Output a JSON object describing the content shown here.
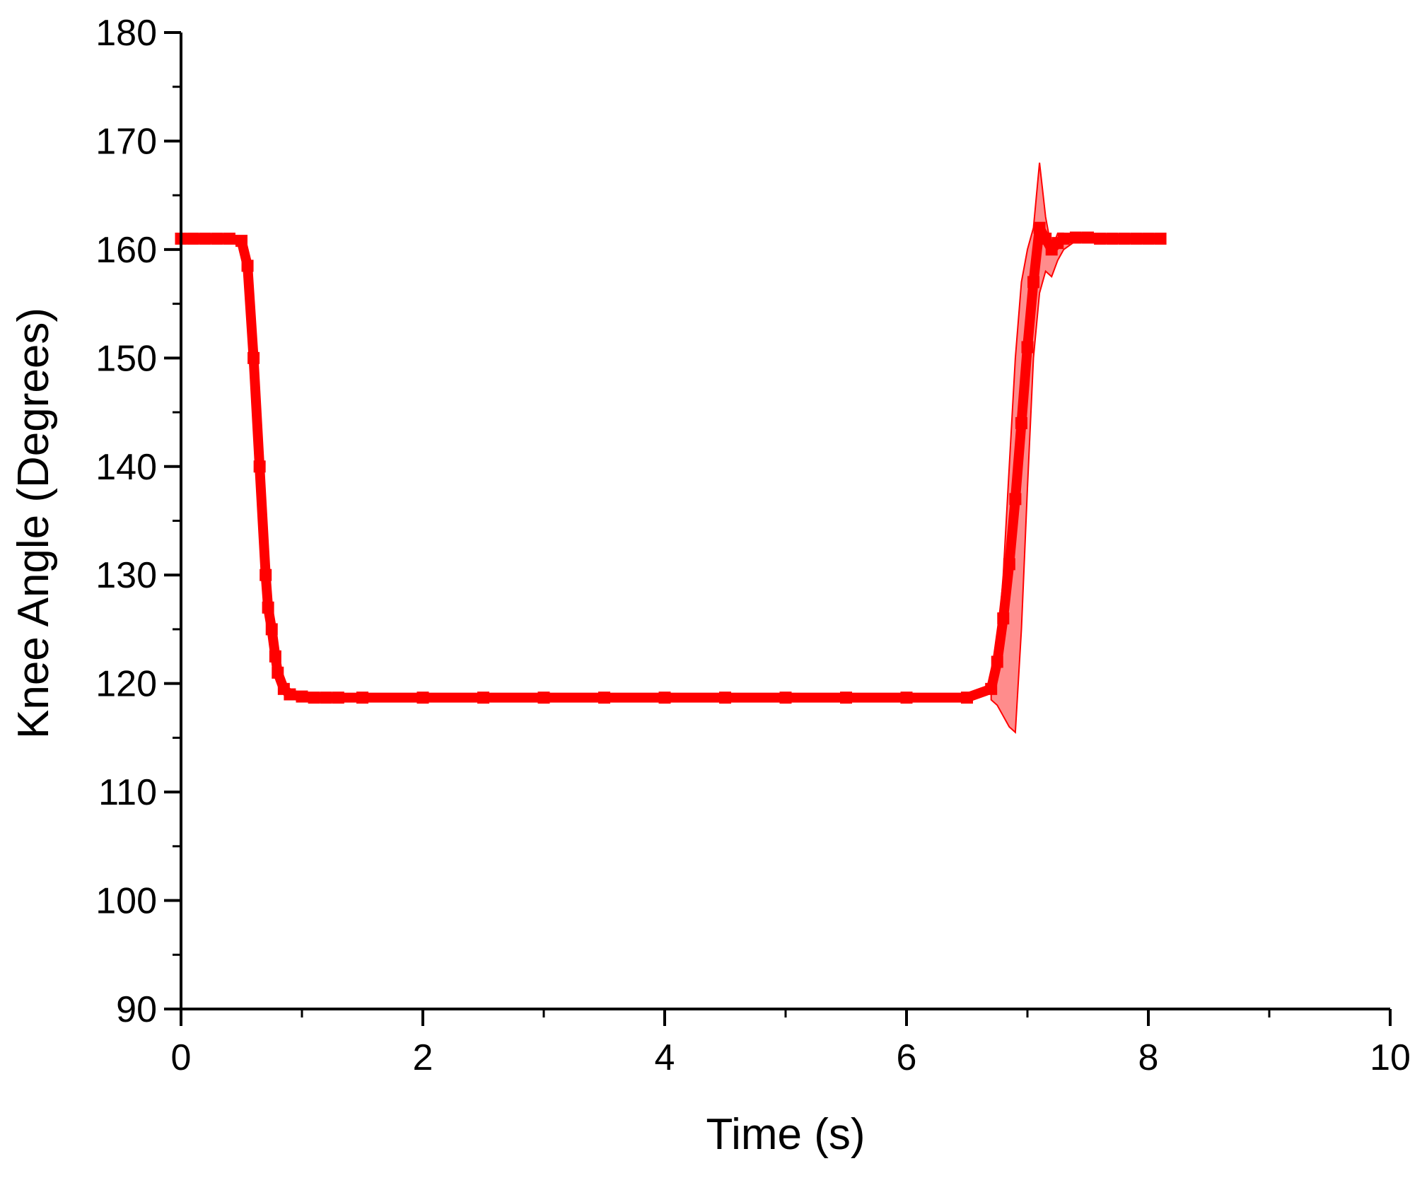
{
  "chart_data": {
    "type": "line",
    "title": "",
    "xlabel": "Time (s)",
    "ylabel": "Knee Angle (Degrees)",
    "xlim": [
      0,
      10
    ],
    "ylim": [
      90,
      180
    ],
    "x_ticks": [
      0,
      2,
      4,
      6,
      8,
      10
    ],
    "y_ticks": [
      90,
      100,
      110,
      120,
      130,
      140,
      150,
      160,
      170,
      180
    ],
    "x_tick_labels": [
      "0",
      "2",
      "4",
      "6",
      "8",
      "10"
    ],
    "y_tick_labels": [
      "90",
      "100",
      "110",
      "120",
      "130",
      "140",
      "150",
      "160",
      "170",
      "180"
    ],
    "grid": false,
    "legend": "none",
    "series_color": "#ff0000",
    "band_color": "#ff0000",
    "series": [
      {
        "marker": "square",
        "x": [
          0,
          0.1,
          0.2,
          0.3,
          0.4,
          0.5,
          0.55,
          0.6,
          0.65,
          0.7,
          0.72,
          0.75,
          0.78,
          0.8,
          0.85,
          0.9,
          1.0,
          1.1,
          1.2,
          1.3,
          1.5,
          2.0,
          2.5,
          3.0,
          3.5,
          4.0,
          4.5,
          5.0,
          5.5,
          6.0,
          6.5,
          6.7,
          6.75,
          6.8,
          6.85,
          6.9,
          6.95,
          7.0,
          7.05,
          7.1,
          7.15,
          7.2,
          7.25,
          7.3,
          7.4,
          7.5,
          7.6,
          7.7,
          7.8,
          7.9,
          8.0,
          8.1
        ],
        "y": [
          161,
          161,
          161,
          161,
          161,
          160.8,
          158.5,
          150,
          140,
          130,
          127,
          125,
          122.5,
          121,
          119.5,
          119,
          118.8,
          118.7,
          118.7,
          118.7,
          118.7,
          118.7,
          118.7,
          118.7,
          118.7,
          118.7,
          118.7,
          118.7,
          118.7,
          118.7,
          118.7,
          119.5,
          122,
          126,
          131,
          137,
          144,
          151,
          157,
          162,
          161,
          160,
          160.6,
          161,
          161.1,
          161.1,
          161,
          161,
          161,
          161,
          161,
          161
        ]
      }
    ],
    "band": {
      "x": [
        6.7,
        6.75,
        6.8,
        6.85,
        6.9,
        6.95,
        7.0,
        7.05,
        7.1,
        7.15,
        7.2,
        7.25,
        7.3,
        7.4
      ],
      "upper": [
        119,
        123,
        130,
        140,
        150,
        157,
        160,
        162,
        168,
        163,
        160,
        161.5,
        161.5,
        161.2
      ],
      "lower": [
        118.5,
        118,
        117,
        116,
        115.5,
        125,
        138,
        150,
        156,
        158,
        157.5,
        159,
        160,
        160.8
      ]
    }
  }
}
